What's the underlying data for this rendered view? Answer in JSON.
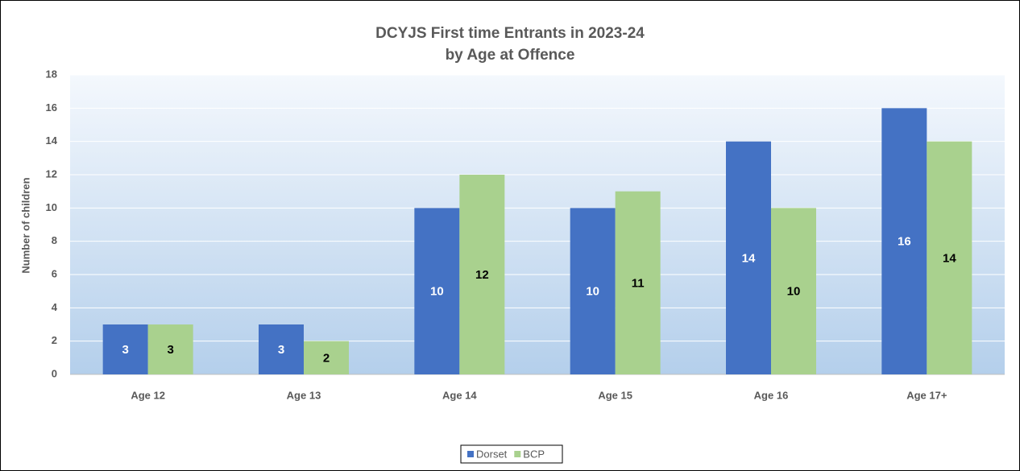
{
  "chart_data": {
    "type": "bar",
    "title": "DCYJS First time Entrants in 2023-24",
    "subtitle": "by Age at Offence",
    "y_label": "Number of children",
    "categories": [
      "Age 12",
      "Age 13",
      "Age 14",
      "Age 15",
      "Age 16",
      "Age 17+"
    ],
    "series": [
      {
        "name": "Dorset",
        "color": "#4472c4",
        "label_color": "#ffffff",
        "values": [
          3,
          3,
          10,
          10,
          14,
          16
        ]
      },
      {
        "name": "BCP",
        "color": "#a9d18e",
        "label_color": "#000000",
        "values": [
          3,
          2,
          12,
          11,
          10,
          14
        ]
      }
    ],
    "ylim": [
      0,
      18
    ],
    "yticks": [
      0,
      2,
      4,
      6,
      8,
      10,
      12,
      14,
      16,
      18
    ],
    "grid": true,
    "legend": "bottom"
  }
}
